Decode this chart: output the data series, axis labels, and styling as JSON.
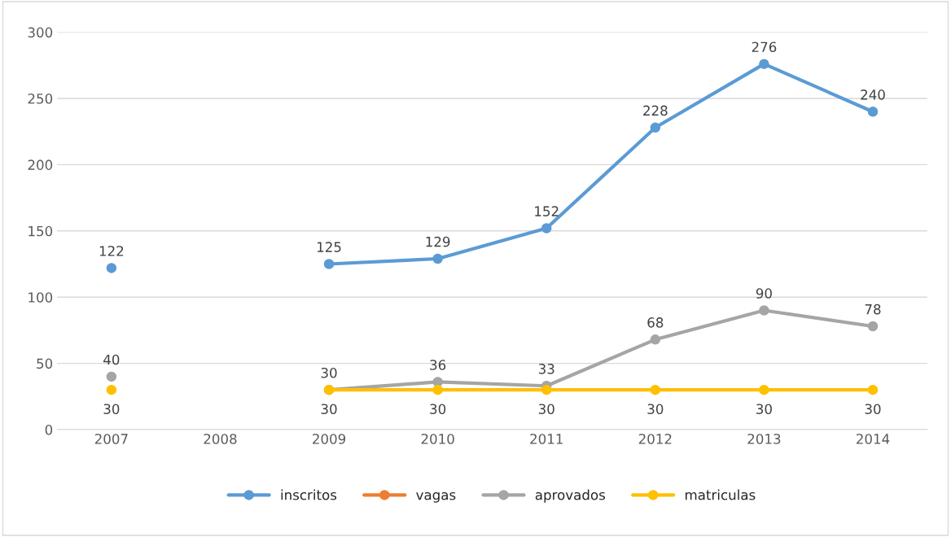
{
  "chart_data": {
    "type": "line",
    "categories": [
      "2007",
      "2008",
      "2009",
      "2010",
      "2011",
      "2012",
      "2013",
      "2014"
    ],
    "series": [
      {
        "name": "inscritos",
        "color": "#5b9bd5",
        "values": [
          122,
          null,
          125,
          129,
          152,
          228,
          276,
          240
        ]
      },
      {
        "name": "vagas",
        "color": "#ed7d31",
        "values": [
          null,
          null,
          null,
          null,
          null,
          null,
          null,
          null
        ]
      },
      {
        "name": "aprovados",
        "color": "#a5a5a5",
        "values": [
          40,
          null,
          30,
          36,
          33,
          68,
          90,
          78
        ]
      },
      {
        "name": "matriculas",
        "color": "#ffc000",
        "values": [
          30,
          null,
          30,
          30,
          30,
          30,
          30,
          30
        ]
      }
    ],
    "ylim": [
      0,
      300
    ],
    "yticks": [
      0,
      50,
      100,
      150,
      200,
      250,
      300
    ],
    "grid": "y",
    "legend": "bottom",
    "marker": "circle",
    "line_style": "solid",
    "data_labels": true
  }
}
